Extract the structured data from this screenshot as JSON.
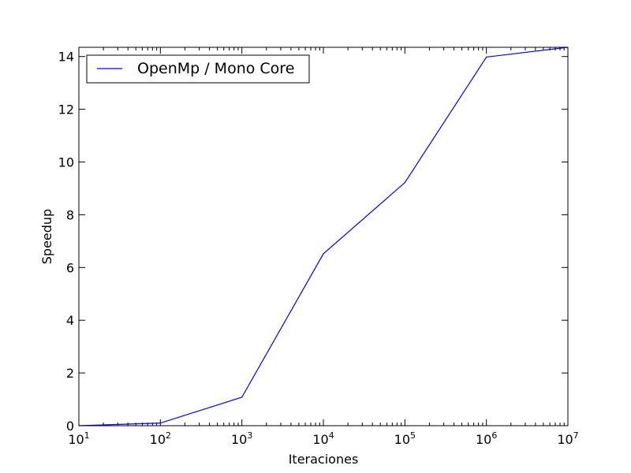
{
  "chart_data": {
    "type": "line",
    "x_scale": "log",
    "x": [
      10,
      100,
      1000,
      10000,
      100000,
      1000000,
      10000000
    ],
    "series": [
      {
        "name": "OpenMp / Mono Core",
        "color": "#0000ff",
        "values": [
          0.0,
          0.1,
          1.08,
          6.52,
          9.22,
          13.98,
          14.35
        ]
      }
    ],
    "xlabel": "Iteraciones",
    "ylabel": "Speedup",
    "xlim": [
      10,
      10000000
    ],
    "ylim": [
      0,
      14.35
    ],
    "x_ticks": [
      {
        "base": "10",
        "exp": "1"
      },
      {
        "base": "10",
        "exp": "2"
      },
      {
        "base": "10",
        "exp": "3"
      },
      {
        "base": "10",
        "exp": "4"
      },
      {
        "base": "10",
        "exp": "5"
      },
      {
        "base": "10",
        "exp": "6"
      },
      {
        "base": "10",
        "exp": "7"
      }
    ],
    "y_ticks": [
      "0",
      "2",
      "4",
      "6",
      "8",
      "10",
      "12",
      "14"
    ],
    "grid": false,
    "legend": "top-left"
  }
}
